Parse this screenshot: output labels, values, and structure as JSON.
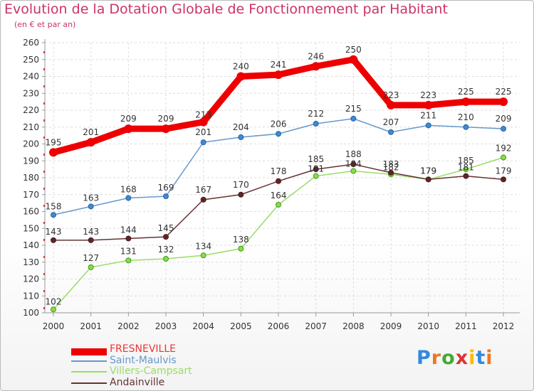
{
  "chart_data": {
    "type": "line",
    "title": "Evolution de la Dotation Globale de Fonctionnement par Habitant",
    "subtitle": "(en € et par an)",
    "xlabel": "",
    "ylabel": "",
    "ylim": [
      100,
      260
    ],
    "y_ticks": [
      100,
      110,
      120,
      130,
      140,
      150,
      160,
      170,
      180,
      190,
      200,
      210,
      220,
      230,
      240,
      250,
      260
    ],
    "x": [
      "2000",
      "2001",
      "2002",
      "2003",
      "2004",
      "2005",
      "2006",
      "2007",
      "2008",
      "2009",
      "2010",
      "2011",
      "2012"
    ],
    "series": [
      {
        "name": "FRESNEVILLE",
        "color": "#ee0000",
        "values": [
          195,
          201,
          209,
          209,
          213,
          240,
          241,
          246,
          250,
          223,
          223,
          225,
          225
        ]
      },
      {
        "name": "Saint-Maulvis",
        "color": "#6699cc",
        "values": [
          158,
          163,
          168,
          169,
          201,
          204,
          206,
          212,
          215,
          207,
          211,
          210,
          209
        ]
      },
      {
        "name": "Villers-Campsart",
        "color": "#99dd66",
        "values": [
          102,
          127,
          131,
          132,
          134,
          138,
          164,
          181,
          184,
          182,
          179,
          185,
          192
        ]
      },
      {
        "name": "Andainville",
        "color": "#663333",
        "values": [
          143,
          143,
          144,
          145,
          167,
          170,
          178,
          185,
          188,
          183,
          179,
          181,
          179
        ]
      }
    ],
    "legend_position": "bottom-left",
    "grid": true
  },
  "logo": {
    "letters": [
      "P",
      "r",
      "o",
      "x",
      "i",
      "t",
      "i"
    ]
  }
}
